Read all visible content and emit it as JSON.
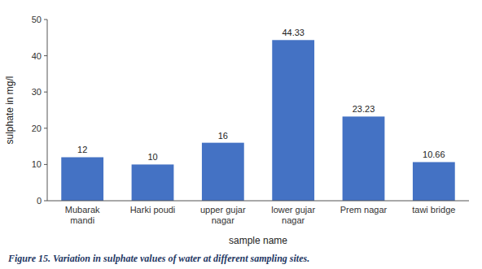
{
  "chart_data": {
    "type": "bar",
    "categories": [
      "Mubarak\nmandi",
      "Harki poudi",
      "upper gujar\nnagar",
      "lower gujar\nnagar",
      "Prem nagar",
      "tawi bridge"
    ],
    "values": [
      12,
      10,
      16,
      44.33,
      23.23,
      10.66
    ],
    "color": "#4472C4",
    "xlabel": "sample name",
    "ylabel": "sulphate in mg/l",
    "ylim": [
      0,
      50
    ],
    "yticks": [
      0,
      10,
      20,
      30,
      40,
      50
    ],
    "data_labels": true,
    "grid": false,
    "caption": "Figure 15. Variation in sulphate values of water at different sampling sites."
  }
}
